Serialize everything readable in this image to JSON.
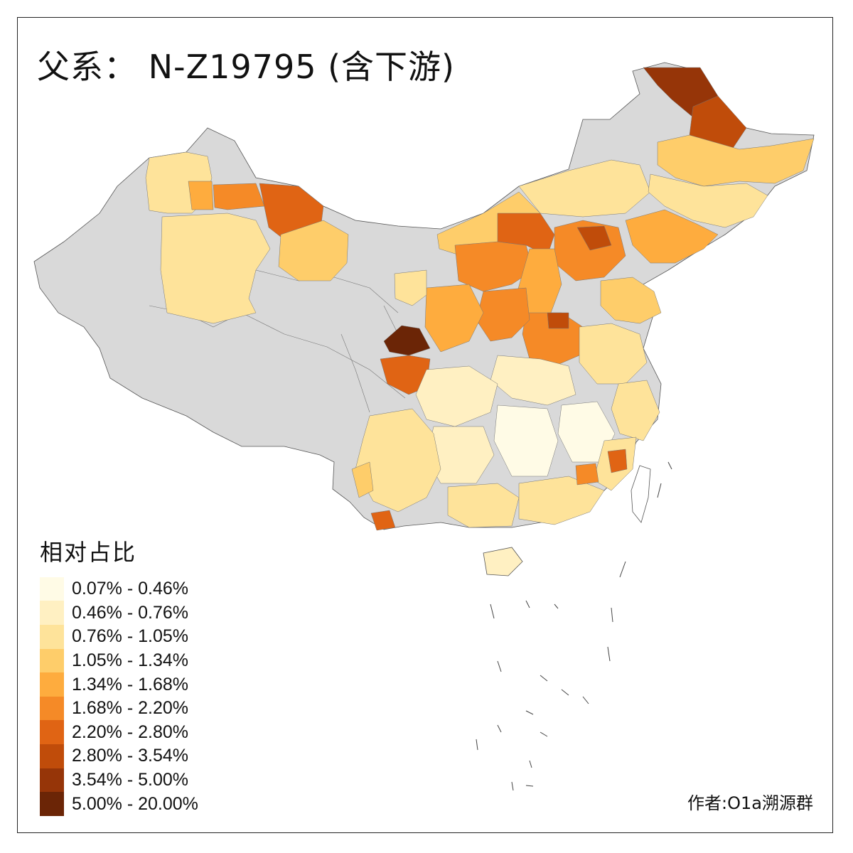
{
  "title": "父系： N-Z19795 (含下游)",
  "legend": {
    "title": "相对占比",
    "items": [
      {
        "label": "0.07% - 0.46%",
        "color": "#fffbe6"
      },
      {
        "label": "0.46% - 0.76%",
        "color": "#fff0c2"
      },
      {
        "label": "0.76% - 1.05%",
        "color": "#fee39a"
      },
      {
        "label": "1.05% - 1.34%",
        "color": "#fecd6a"
      },
      {
        "label": "1.34% - 1.68%",
        "color": "#feac3e"
      },
      {
        "label": "1.68% - 2.20%",
        "color": "#f58a27"
      },
      {
        "label": "2.20% - 2.80%",
        "color": "#e06414"
      },
      {
        "label": "2.80% - 3.54%",
        "color": "#c04c0a"
      },
      {
        "label": "3.54% - 5.00%",
        "color": "#963508"
      },
      {
        "label": "5.00% - 20.00%",
        "color": "#6b2506"
      }
    ]
  },
  "author": "作者:O1a溯源群",
  "colors": {
    "no_data": "#d9d9d9",
    "border": "#555555"
  }
}
